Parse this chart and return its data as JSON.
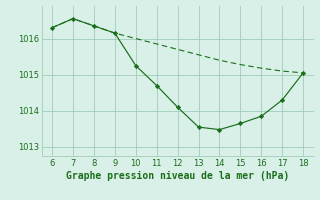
{
  "line1_x": [
    6,
    7,
    8,
    9,
    10,
    11,
    12,
    13,
    14,
    15,
    16,
    17,
    18
  ],
  "line1_y": [
    1016.3,
    1016.55,
    1016.35,
    1016.15,
    1015.25,
    1014.7,
    1014.1,
    1013.55,
    1013.48,
    1013.65,
    1013.85,
    1014.3,
    1015.05
  ],
  "line2_x": [
    6,
    7,
    8,
    9,
    10,
    11,
    12,
    13,
    14,
    15,
    16,
    17,
    18
  ],
  "line2_y": [
    1016.3,
    1016.55,
    1016.35,
    1016.15,
    1016.0,
    1015.85,
    1015.7,
    1015.55,
    1015.4,
    1015.28,
    1015.18,
    1015.1,
    1015.05
  ],
  "line_color": "#1a6e1a",
  "bg_color": "#d8f0e8",
  "grid_color": "#a0ccb8",
  "xlabel": "Graphe pression niveau de la mer (hPa)",
  "xlim": [
    5.5,
    18.5
  ],
  "ylim": [
    1012.75,
    1016.9
  ],
  "xticks": [
    6,
    7,
    8,
    9,
    10,
    11,
    12,
    13,
    14,
    15,
    16,
    17,
    18
  ],
  "yticks": [
    1013,
    1014,
    1015,
    1016
  ],
  "xlabel_color": "#1a6e1a",
  "tick_color": "#1a6e1a",
  "tick_fontsize": 6,
  "xlabel_fontsize": 7
}
